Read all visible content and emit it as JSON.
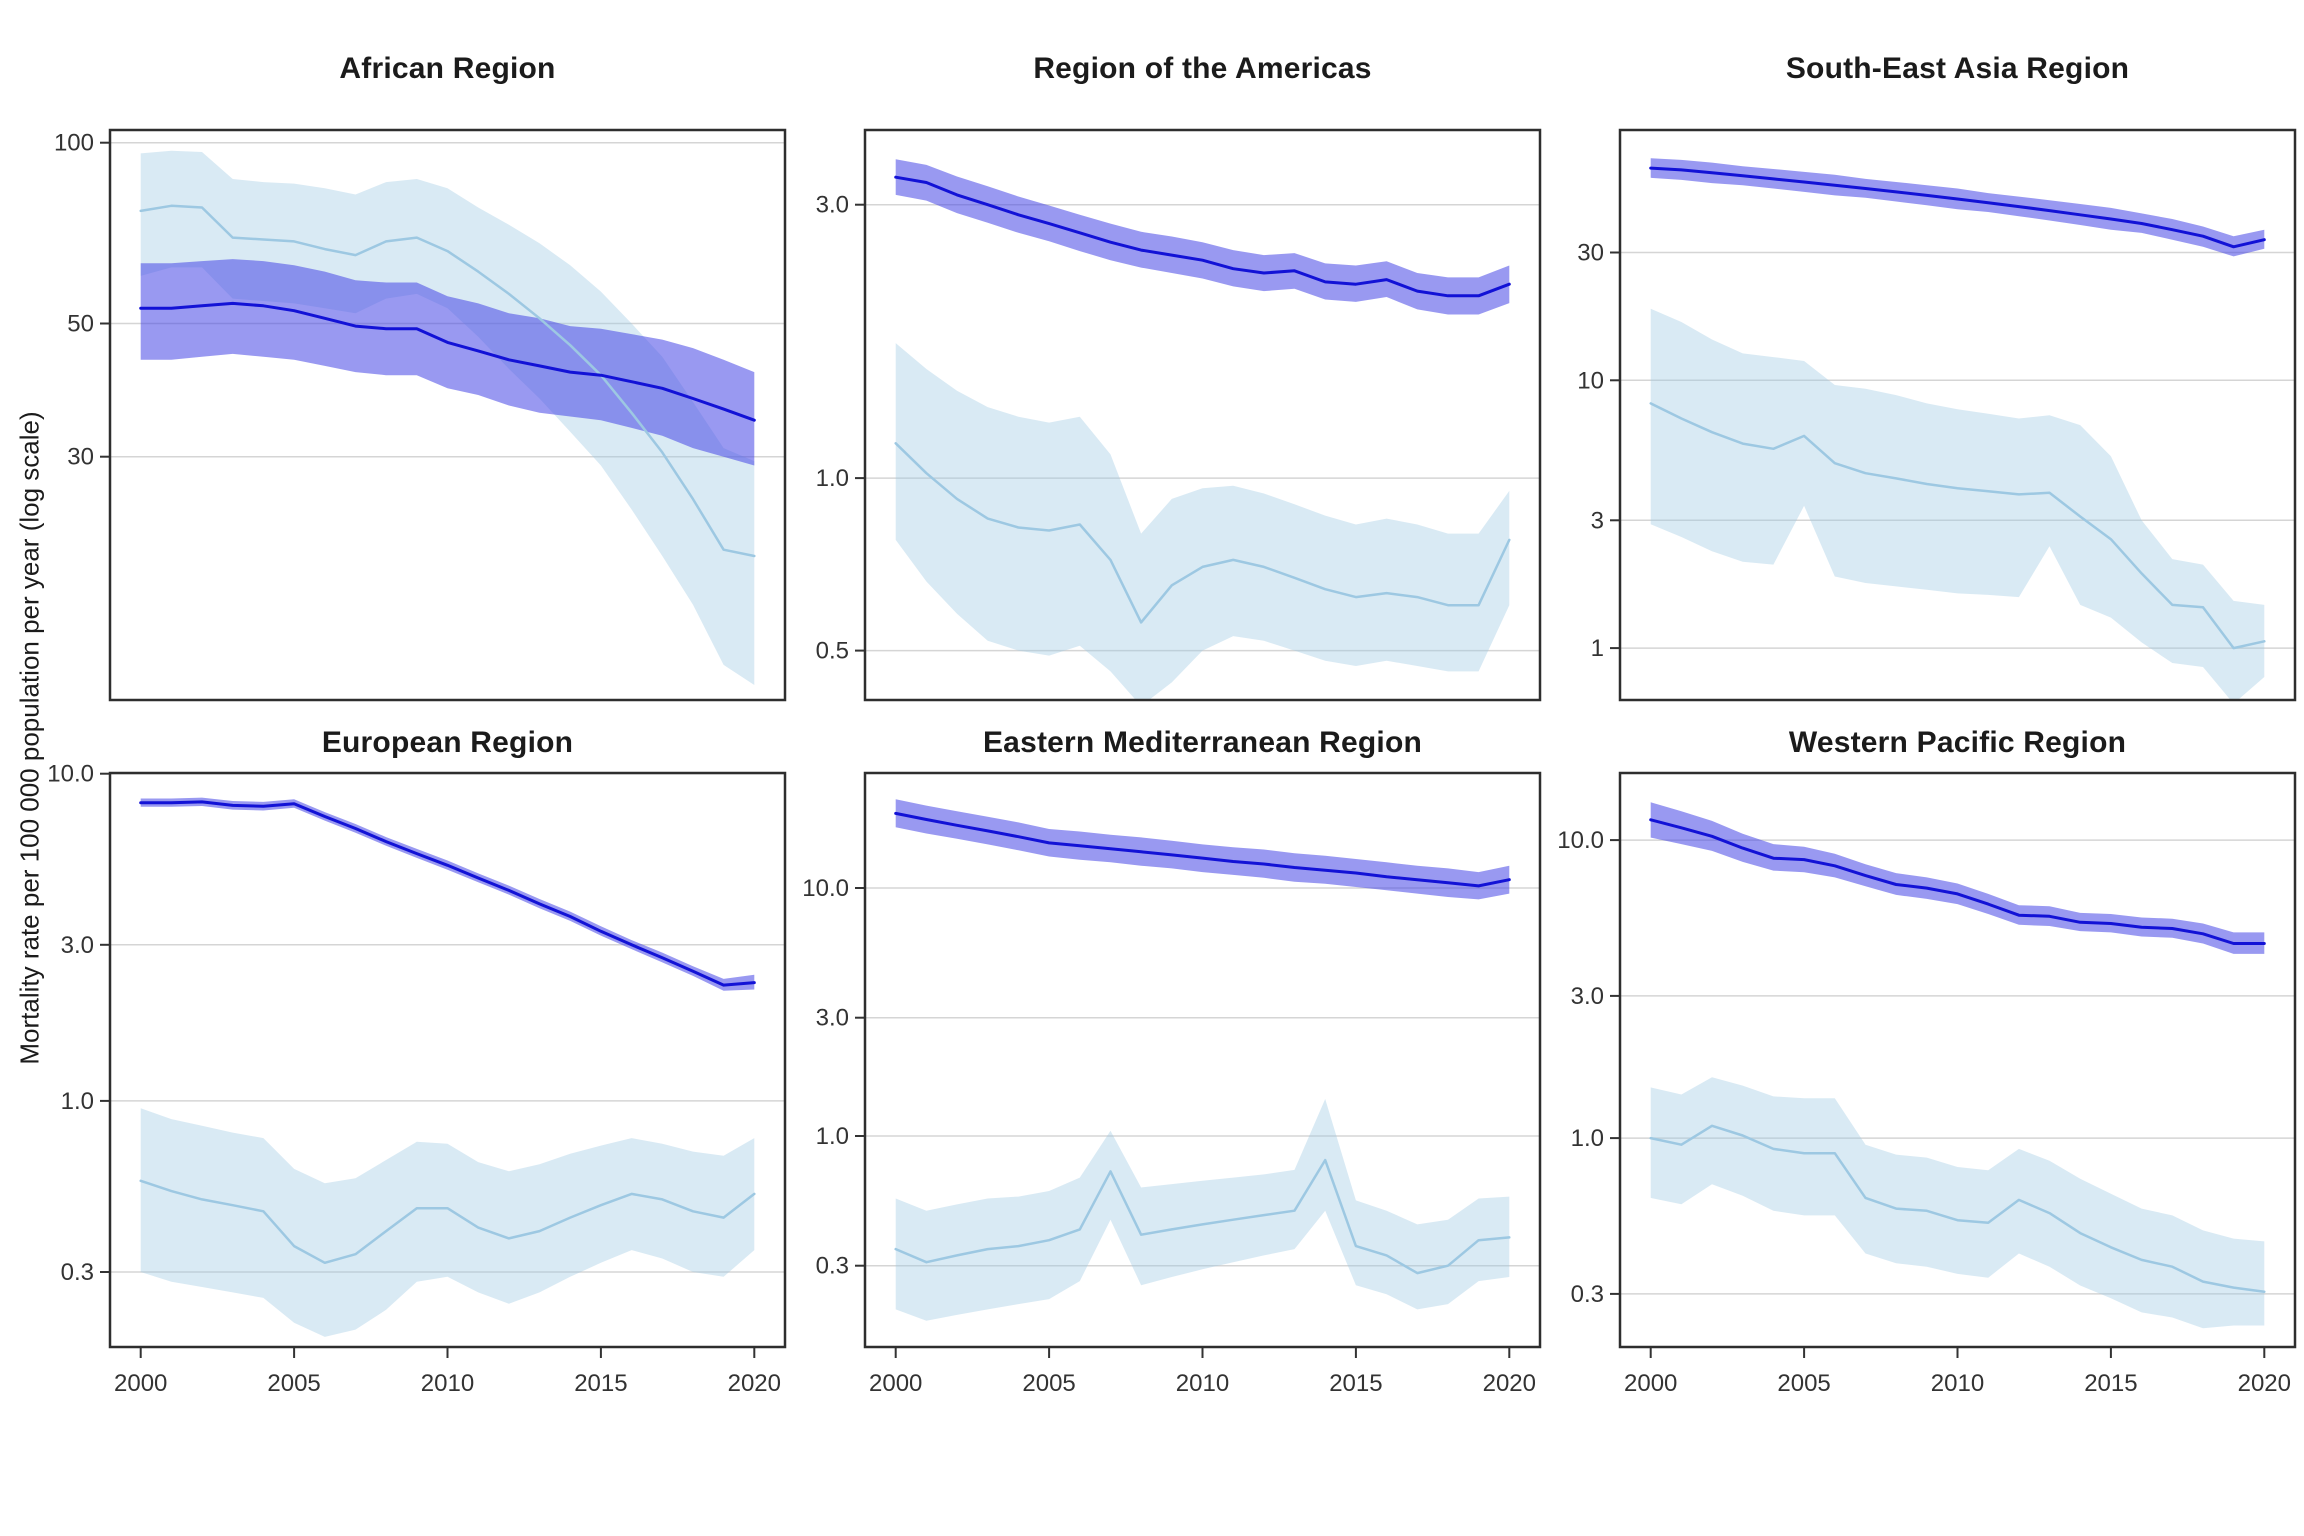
{
  "figure": {
    "ylabel": "Mortality rate per 100 000 population per year (log scale)",
    "years": [
      2000,
      2001,
      2002,
      2003,
      2004,
      2005,
      2006,
      2007,
      2008,
      2009,
      2010,
      2011,
      2012,
      2013,
      2014,
      2015,
      2016,
      2017,
      2018,
      2019,
      2020
    ],
    "x_ticks": [
      {
        "value": 2000,
        "label": "2000"
      },
      {
        "value": 2005,
        "label": "2005"
      },
      {
        "value": 2010,
        "label": "2010"
      },
      {
        "value": 2015,
        "label": "2015"
      },
      {
        "value": 2020,
        "label": "2020"
      }
    ],
    "colors": {
      "dark_line": "#1212d6",
      "dark_band": "rgba(70,70,230,0.55)",
      "light_line": "#9dc8e2",
      "light_band": "rgba(155,200,226,0.38)",
      "grid": "#d5d5d5",
      "border": "#2e2e2e",
      "tick_text": "#333333"
    }
  },
  "chart_data": [
    {
      "type": "line",
      "title": "African Region",
      "log_scale": true,
      "xlabel": "",
      "ylabel": "Mortality rate per 100 000 population per year (log scale)",
      "ylim": [
        11.8,
        105
      ],
      "yticks": [
        {
          "value": 100,
          "label": "100"
        },
        {
          "value": 50,
          "label": "50"
        },
        {
          "value": 30,
          "label": "30"
        }
      ],
      "series": [
        {
          "name": "light_blue_estimate",
          "line_color": "light_line",
          "band_color": "light_band",
          "values": [
            77,
            78.5,
            78,
            69.5,
            69,
            68.5,
            66.5,
            65,
            68.5,
            69.5,
            66,
            61,
            56,
            51,
            46,
            41,
            35.5,
            30.5,
            25.5,
            21,
            20.5
          ],
          "lower": [
            60,
            62,
            62,
            55,
            54.5,
            54,
            53,
            52,
            55,
            56,
            53,
            47.5,
            42,
            37.5,
            33,
            29,
            24.5,
            20.5,
            17,
            13.5,
            12.5
          ],
          "upper": [
            96,
            97,
            96.5,
            87,
            86,
            85.5,
            84,
            82,
            86,
            87,
            84,
            78,
            73,
            68,
            62.5,
            56.5,
            50,
            44,
            37,
            31,
            29.5
          ]
        },
        {
          "name": "dark_blue_estimate",
          "line_color": "dark_line",
          "band_color": "dark_band",
          "values": [
            53,
            53,
            53.5,
            54,
            53.5,
            52.5,
            51,
            49.5,
            49,
            49,
            46.5,
            45,
            43.5,
            42.5,
            41.5,
            41,
            40,
            39,
            37.5,
            36,
            34.5
          ],
          "lower": [
            43.5,
            43.5,
            44,
            44.5,
            44,
            43.5,
            42.5,
            41.5,
            41,
            41,
            39,
            38,
            36.5,
            35.5,
            35,
            34.5,
            33.5,
            32.5,
            31,
            30,
            29
          ],
          "upper": [
            63,
            63,
            63.5,
            64,
            63.5,
            62.5,
            61,
            59,
            58.5,
            58.5,
            55.5,
            54,
            52,
            51,
            49.5,
            49,
            48,
            47,
            45.5,
            43.5,
            41.5
          ]
        }
      ]
    },
    {
      "type": "line",
      "title": "Region of the Americas",
      "log_scale": true,
      "ylim": [
        0.41,
        4.05
      ],
      "yticks": [
        {
          "value": 3.0,
          "label": "3.0"
        },
        {
          "value": 1.0,
          "label": "1.0"
        },
        {
          "value": 0.5,
          "label": "0.5"
        }
      ],
      "series": [
        {
          "name": "light_blue_estimate",
          "line_color": "light_line",
          "band_color": "light_band",
          "values": [
            1.15,
            1.02,
            0.92,
            0.85,
            0.82,
            0.81,
            0.83,
            0.72,
            0.56,
            0.65,
            0.7,
            0.72,
            0.7,
            0.67,
            0.64,
            0.62,
            0.63,
            0.62,
            0.6,
            0.6,
            0.78
          ],
          "lower": [
            0.78,
            0.66,
            0.58,
            0.52,
            0.5,
            0.49,
            0.51,
            0.46,
            0.4,
            0.44,
            0.5,
            0.53,
            0.52,
            0.5,
            0.48,
            0.47,
            0.48,
            0.47,
            0.46,
            0.46,
            0.6
          ],
          "upper": [
            1.72,
            1.55,
            1.42,
            1.33,
            1.28,
            1.25,
            1.28,
            1.1,
            0.8,
            0.92,
            0.96,
            0.97,
            0.94,
            0.9,
            0.86,
            0.83,
            0.85,
            0.83,
            0.8,
            0.8,
            0.95
          ]
        },
        {
          "name": "dark_blue_estimate",
          "line_color": "dark_line",
          "band_color": "dark_band",
          "values": [
            3.35,
            3.28,
            3.12,
            3.0,
            2.88,
            2.78,
            2.68,
            2.58,
            2.5,
            2.45,
            2.4,
            2.32,
            2.28,
            2.3,
            2.2,
            2.18,
            2.22,
            2.12,
            2.08,
            2.08,
            2.18
          ],
          "lower": [
            3.12,
            3.05,
            2.9,
            2.79,
            2.68,
            2.59,
            2.49,
            2.4,
            2.33,
            2.28,
            2.23,
            2.16,
            2.12,
            2.14,
            2.05,
            2.03,
            2.07,
            1.97,
            1.93,
            1.93,
            2.02
          ],
          "upper": [
            3.6,
            3.52,
            3.36,
            3.23,
            3.1,
            2.99,
            2.88,
            2.78,
            2.69,
            2.64,
            2.58,
            2.5,
            2.45,
            2.47,
            2.37,
            2.35,
            2.39,
            2.28,
            2.24,
            2.24,
            2.35
          ]
        }
      ]
    },
    {
      "type": "line",
      "title": "South-East Asia Region",
      "log_scale": true,
      "ylim": [
        0.64,
        86
      ],
      "yticks": [
        {
          "value": 30,
          "label": "30"
        },
        {
          "value": 10,
          "label": "10"
        },
        {
          "value": 3,
          "label": "3"
        },
        {
          "value": 1,
          "label": "1"
        }
      ],
      "series": [
        {
          "name": "light_blue_estimate",
          "line_color": "light_line",
          "band_color": "light_band",
          "values": [
            8.2,
            7.2,
            6.4,
            5.8,
            5.55,
            6.2,
            4.9,
            4.5,
            4.3,
            4.1,
            3.95,
            3.85,
            3.75,
            3.8,
            3.1,
            2.55,
            1.9,
            1.45,
            1.42,
            1.0,
            1.06
          ],
          "lower": [
            2.9,
            2.6,
            2.3,
            2.1,
            2.05,
            3.4,
            1.85,
            1.75,
            1.7,
            1.65,
            1.6,
            1.58,
            1.55,
            2.4,
            1.45,
            1.3,
            1.05,
            0.88,
            0.85,
            0.62,
            0.78
          ],
          "upper": [
            18.5,
            16.5,
            14.2,
            12.6,
            12.2,
            11.8,
            9.6,
            9.3,
            8.8,
            8.2,
            7.8,
            7.5,
            7.2,
            7.4,
            6.8,
            5.2,
            3.0,
            2.15,
            2.05,
            1.5,
            1.45
          ]
        },
        {
          "name": "dark_blue_estimate",
          "line_color": "dark_line",
          "band_color": "dark_band",
          "values": [
            62,
            61,
            59.5,
            58,
            56.5,
            55,
            53.5,
            52,
            50.5,
            49,
            47.5,
            46,
            44.5,
            43,
            41.5,
            40,
            38.5,
            36.5,
            34.5,
            31.5,
            33.5
          ],
          "lower": [
            57,
            56,
            54.5,
            53.5,
            52,
            50.5,
            49,
            48,
            46.5,
            45,
            43.5,
            42.5,
            41,
            39.5,
            38,
            36.5,
            35.5,
            33.5,
            31.5,
            29,
            31
          ],
          "upper": [
            67.5,
            66.5,
            65,
            63,
            61.5,
            60,
            58.5,
            56.5,
            55,
            53.5,
            52,
            50,
            48.5,
            47,
            45.5,
            44,
            42,
            40,
            37.5,
            34.5,
            36.5
          ]
        }
      ]
    },
    {
      "type": "line",
      "title": "European Region",
      "log_scale": true,
      "ylim": [
        0.177,
        10.05
      ],
      "yticks": [
        {
          "value": 10.0,
          "label": "10.0"
        },
        {
          "value": 3.0,
          "label": "3.0"
        },
        {
          "value": 1.0,
          "label": "1.0"
        },
        {
          "value": 0.3,
          "label": "0.3"
        }
      ],
      "series": [
        {
          "name": "light_blue_estimate",
          "line_color": "light_line",
          "band_color": "light_band",
          "values": [
            0.57,
            0.53,
            0.5,
            0.48,
            0.46,
            0.36,
            0.32,
            0.34,
            0.4,
            0.47,
            0.47,
            0.41,
            0.38,
            0.4,
            0.44,
            0.48,
            0.52,
            0.5,
            0.46,
            0.44,
            0.52
          ],
          "lower": [
            0.3,
            0.28,
            0.27,
            0.26,
            0.25,
            0.21,
            0.19,
            0.2,
            0.23,
            0.28,
            0.29,
            0.26,
            0.24,
            0.26,
            0.29,
            0.32,
            0.35,
            0.33,
            0.3,
            0.29,
            0.35
          ],
          "upper": [
            0.95,
            0.88,
            0.84,
            0.8,
            0.77,
            0.62,
            0.56,
            0.58,
            0.66,
            0.75,
            0.74,
            0.65,
            0.61,
            0.64,
            0.69,
            0.73,
            0.77,
            0.74,
            0.7,
            0.68,
            0.77
          ]
        },
        {
          "name": "dark_blue_estimate",
          "line_color": "dark_line",
          "band_color": "dark_band",
          "values": [
            8.15,
            8.15,
            8.2,
            8.0,
            7.95,
            8.1,
            7.4,
            6.8,
            6.2,
            5.7,
            5.25,
            4.8,
            4.4,
            4.0,
            3.66,
            3.3,
            3.0,
            2.74,
            2.49,
            2.26,
            2.3
          ],
          "lower": [
            7.92,
            7.92,
            7.97,
            7.77,
            7.72,
            7.87,
            7.19,
            6.6,
            6.02,
            5.53,
            5.09,
            4.66,
            4.27,
            3.88,
            3.55,
            3.2,
            2.91,
            2.65,
            2.41,
            2.17,
            2.19
          ],
          "upper": [
            8.4,
            8.4,
            8.45,
            8.25,
            8.2,
            8.35,
            7.63,
            7.02,
            6.4,
            5.89,
            5.43,
            4.96,
            4.55,
            4.14,
            3.79,
            3.42,
            3.1,
            2.84,
            2.58,
            2.36,
            2.43
          ]
        }
      ]
    },
    {
      "type": "line",
      "title": "Eastern Mediterranean Region",
      "log_scale": true,
      "ylim": [
        0.141,
        29.1
      ],
      "yticks": [
        {
          "value": 10.0,
          "label": "10.0"
        },
        {
          "value": 3.0,
          "label": "3.0"
        },
        {
          "value": 1.0,
          "label": "1.0"
        },
        {
          "value": 0.3,
          "label": "0.3"
        }
      ],
      "series": [
        {
          "name": "light_blue_estimate",
          "line_color": "light_line",
          "band_color": "light_band",
          "values": [
            0.35,
            0.31,
            0.33,
            0.35,
            0.36,
            0.38,
            0.42,
            0.72,
            0.4,
            0.42,
            0.44,
            0.46,
            0.48,
            0.5,
            0.8,
            0.36,
            0.33,
            0.28,
            0.3,
            0.38,
            0.39
          ],
          "lower": [
            0.2,
            0.18,
            0.19,
            0.2,
            0.21,
            0.22,
            0.26,
            0.46,
            0.25,
            0.27,
            0.29,
            0.31,
            0.33,
            0.35,
            0.5,
            0.25,
            0.23,
            0.2,
            0.21,
            0.26,
            0.27
          ],
          "upper": [
            0.56,
            0.5,
            0.53,
            0.56,
            0.57,
            0.6,
            0.68,
            1.05,
            0.62,
            0.64,
            0.66,
            0.68,
            0.7,
            0.73,
            1.41,
            0.55,
            0.5,
            0.44,
            0.46,
            0.56,
            0.57
          ]
        },
        {
          "name": "dark_blue_estimate",
          "line_color": "dark_line",
          "band_color": "dark_band",
          "values": [
            20.0,
            18.9,
            17.9,
            17.0,
            16.1,
            15.2,
            14.8,
            14.4,
            14.0,
            13.6,
            13.2,
            12.8,
            12.5,
            12.1,
            11.8,
            11.5,
            11.1,
            10.8,
            10.5,
            10.2,
            10.8
          ],
          "lower": [
            17.6,
            16.6,
            15.8,
            15.0,
            14.2,
            13.4,
            13.0,
            12.7,
            12.3,
            12.0,
            11.6,
            11.3,
            11.0,
            10.6,
            10.4,
            10.1,
            9.8,
            9.5,
            9.2,
            9.0,
            9.5
          ],
          "upper": [
            22.8,
            21.5,
            20.4,
            19.4,
            18.4,
            17.3,
            16.9,
            16.4,
            16.0,
            15.5,
            15.0,
            14.6,
            14.3,
            13.8,
            13.5,
            13.1,
            12.7,
            12.3,
            12.0,
            11.6,
            12.3
          ]
        }
      ]
    },
    {
      "type": "line",
      "title": "Western Pacific Region",
      "log_scale": true,
      "ylim": [
        0.199,
        16.8
      ],
      "yticks": [
        {
          "value": 10.0,
          "label": "10.0"
        },
        {
          "value": 3.0,
          "label": "3.0"
        },
        {
          "value": 1.0,
          "label": "1.0"
        },
        {
          "value": 0.3,
          "label": "0.3"
        }
      ],
      "series": [
        {
          "name": "light_blue_estimate",
          "line_color": "light_line",
          "band_color": "light_band",
          "values": [
            1.0,
            0.95,
            1.1,
            1.02,
            0.92,
            0.89,
            0.89,
            0.63,
            0.58,
            0.57,
            0.53,
            0.52,
            0.62,
            0.56,
            0.48,
            0.43,
            0.39,
            0.37,
            0.33,
            0.315,
            0.305
          ],
          "lower": [
            0.63,
            0.6,
            0.7,
            0.64,
            0.57,
            0.55,
            0.55,
            0.41,
            0.38,
            0.37,
            0.35,
            0.34,
            0.41,
            0.37,
            0.32,
            0.29,
            0.26,
            0.25,
            0.23,
            0.235,
            0.235
          ],
          "upper": [
            1.48,
            1.4,
            1.6,
            1.5,
            1.38,
            1.36,
            1.36,
            0.95,
            0.88,
            0.86,
            0.8,
            0.78,
            0.92,
            0.84,
            0.73,
            0.65,
            0.58,
            0.55,
            0.49,
            0.46,
            0.45
          ]
        },
        {
          "name": "dark_blue_estimate",
          "line_color": "dark_line",
          "band_color": "dark_band",
          "values": [
            11.7,
            11.0,
            10.3,
            9.4,
            8.7,
            8.6,
            8.2,
            7.6,
            7.1,
            6.9,
            6.6,
            6.1,
            5.6,
            5.55,
            5.3,
            5.25,
            5.1,
            5.05,
            4.85,
            4.5,
            4.5
          ],
          "lower": [
            10.2,
            9.7,
            9.2,
            8.45,
            7.9,
            7.8,
            7.5,
            7.0,
            6.55,
            6.35,
            6.1,
            5.65,
            5.2,
            5.15,
            4.95,
            4.9,
            4.75,
            4.7,
            4.5,
            4.15,
            4.15
          ],
          "upper": [
            13.4,
            12.5,
            11.6,
            10.5,
            9.7,
            9.5,
            9.0,
            8.3,
            7.75,
            7.5,
            7.15,
            6.6,
            6.05,
            6.0,
            5.7,
            5.65,
            5.5,
            5.45,
            5.25,
            4.9,
            4.9
          ]
        }
      ]
    }
  ]
}
